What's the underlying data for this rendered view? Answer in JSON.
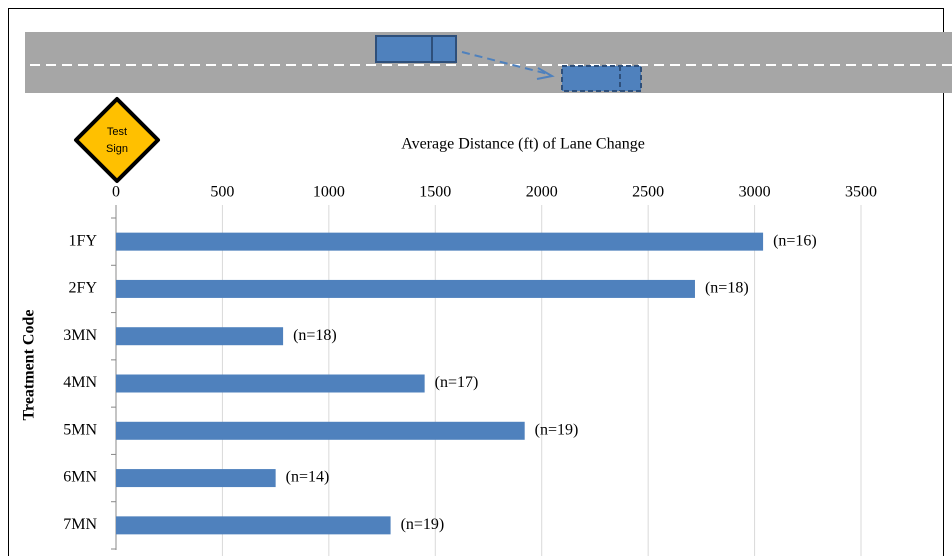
{
  "chart_data": {
    "type": "bar",
    "orientation": "horizontal",
    "title": "Average Distance (ft) of Lane Change",
    "y_label": "Treatment Code",
    "sign_text": [
      "Test",
      "Sign"
    ],
    "categories": [
      "1FY",
      "2FY",
      "3MN",
      "4MN",
      "5MN",
      "6MN",
      "7MN"
    ],
    "values": [
      3040,
      2720,
      785,
      1450,
      1920,
      750,
      1290
    ],
    "annotations": [
      "(n=16)",
      "(n=18)",
      "(n=18)",
      "(n=17)",
      "(n=19)",
      "(n=14)",
      "(n=19)"
    ],
    "color": "#4f81bd",
    "xlim": [
      0,
      3500
    ],
    "xticks": [
      0,
      500,
      1000,
      1500,
      2000,
      2500,
      3000,
      3500
    ],
    "grid": true
  }
}
